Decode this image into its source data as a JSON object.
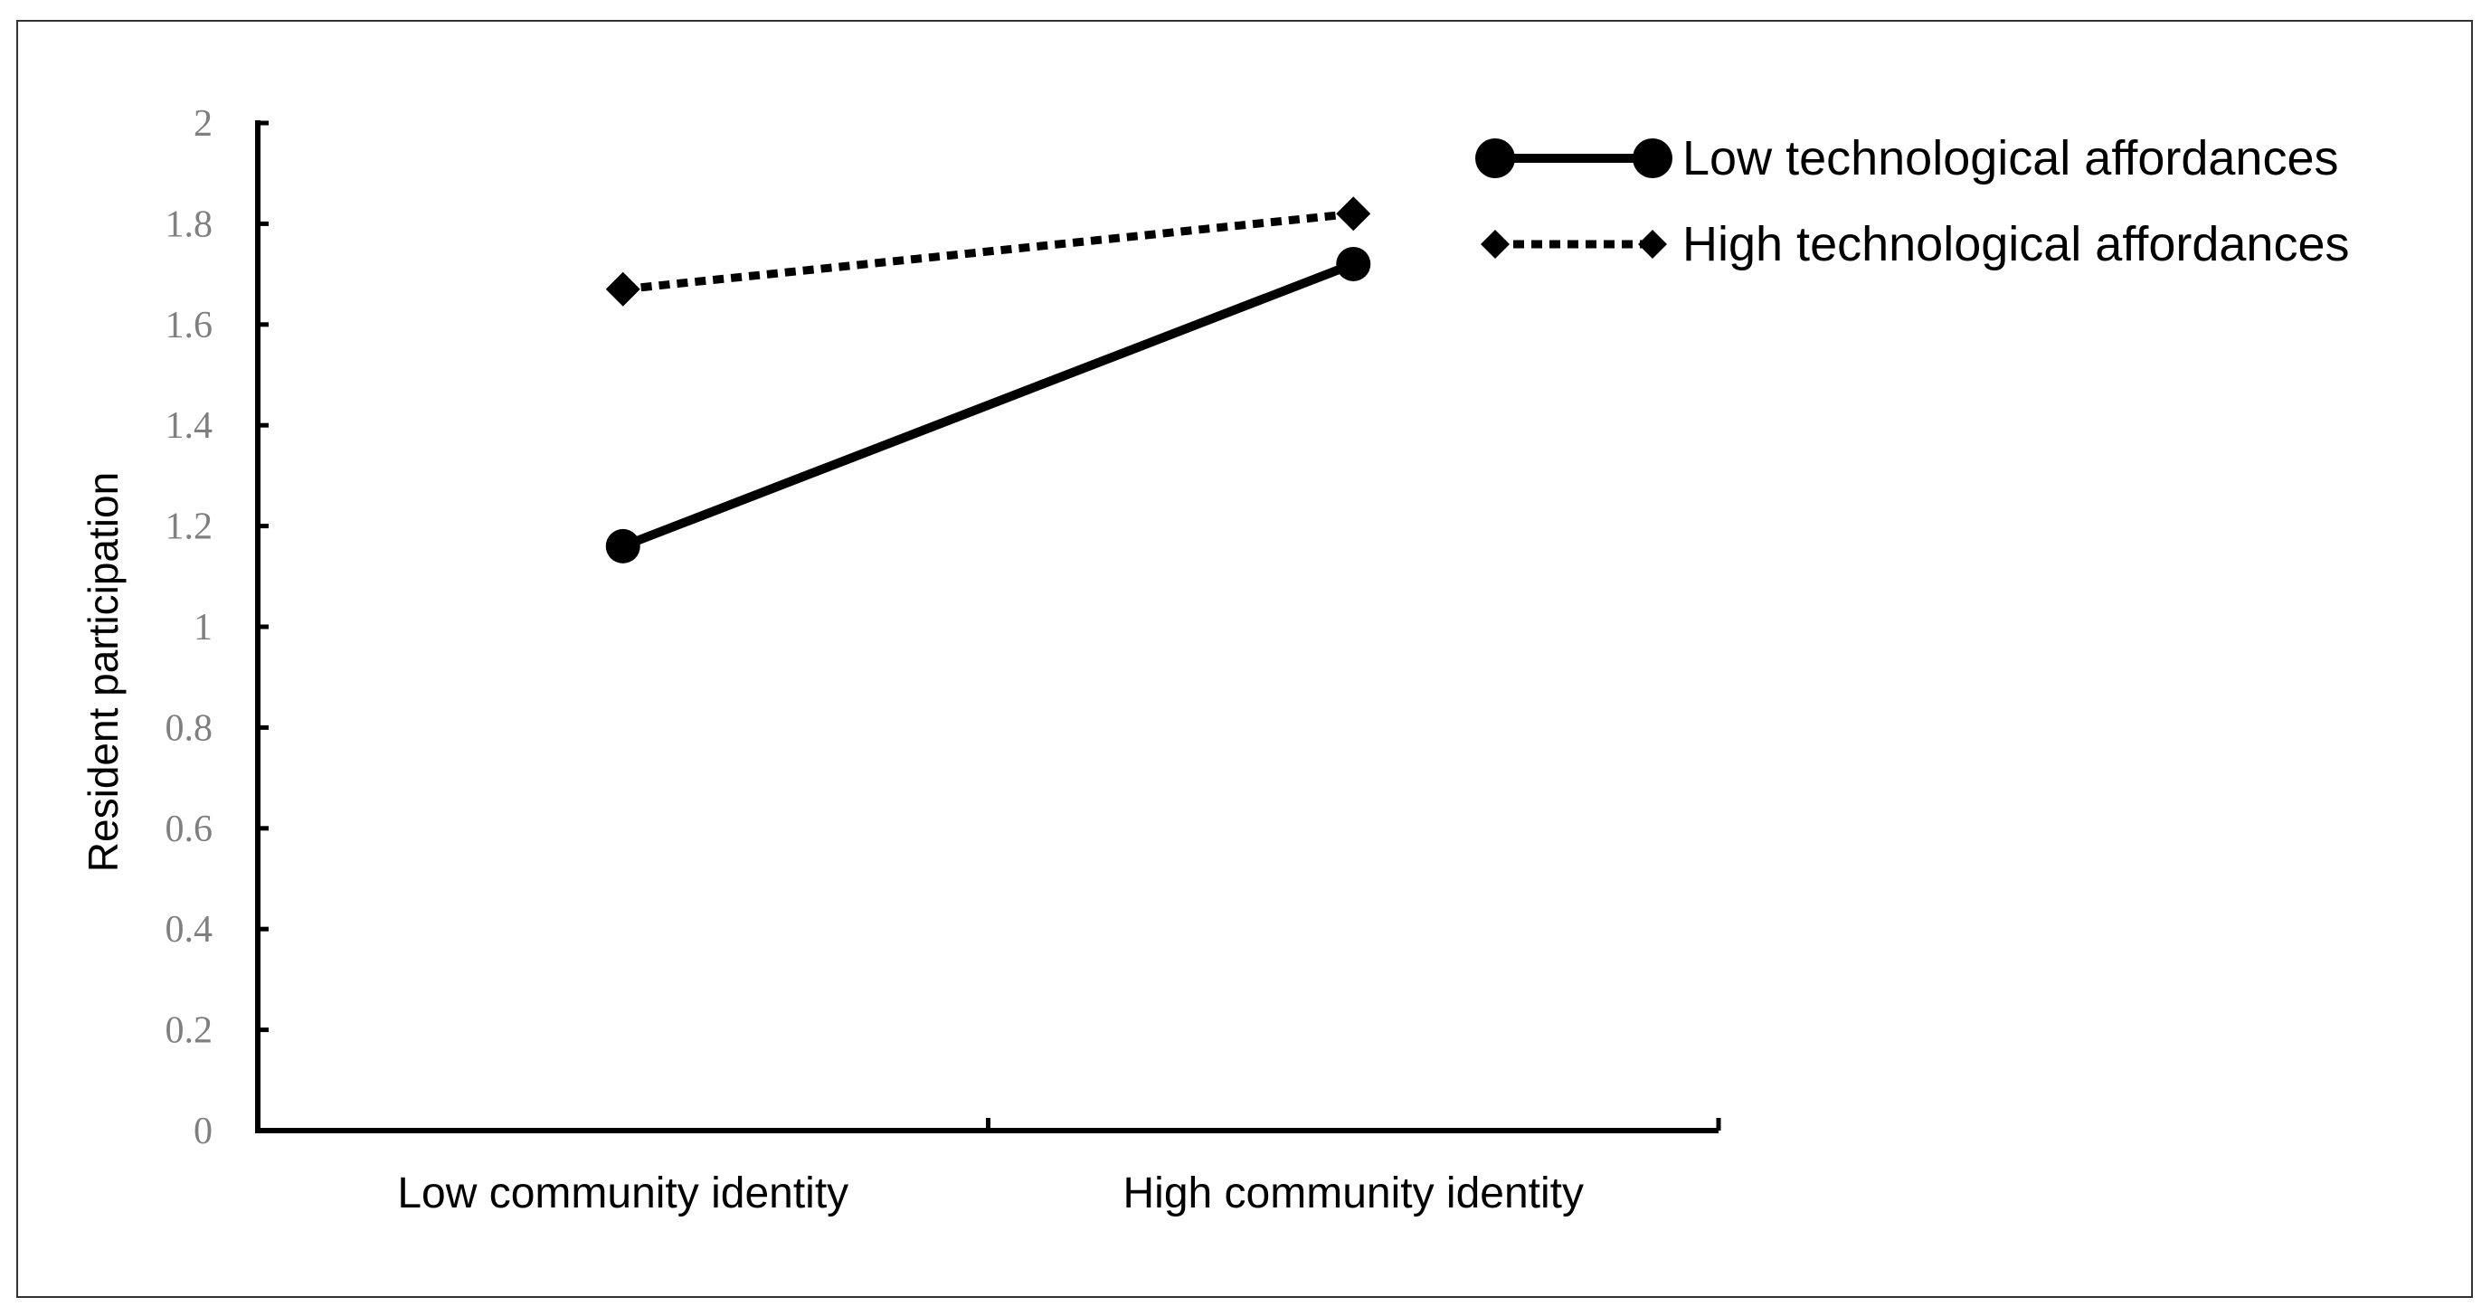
{
  "chart_data": {
    "type": "line",
    "title": "",
    "xlabel": "",
    "ylabel": "Resident participation",
    "categories": [
      "Low community identity",
      "High community identity"
    ],
    "ylim": [
      0,
      2
    ],
    "yticks": [
      "0",
      "0.2",
      "0.4",
      "0.6",
      "0.8",
      "1",
      "1.2",
      "1.4",
      "1.6",
      "1.8",
      "2"
    ],
    "grid": false,
    "legend_position": "top-right",
    "series": [
      {
        "name": "Low technological affordances",
        "values": [
          1.16,
          1.72
        ],
        "line_style": "solid",
        "marker": "circle",
        "color": "#000000"
      },
      {
        "name": "High technological affordances",
        "values": [
          1.67,
          1.82
        ],
        "line_style": "dotted",
        "marker": "diamond",
        "color": "#000000"
      }
    ]
  }
}
